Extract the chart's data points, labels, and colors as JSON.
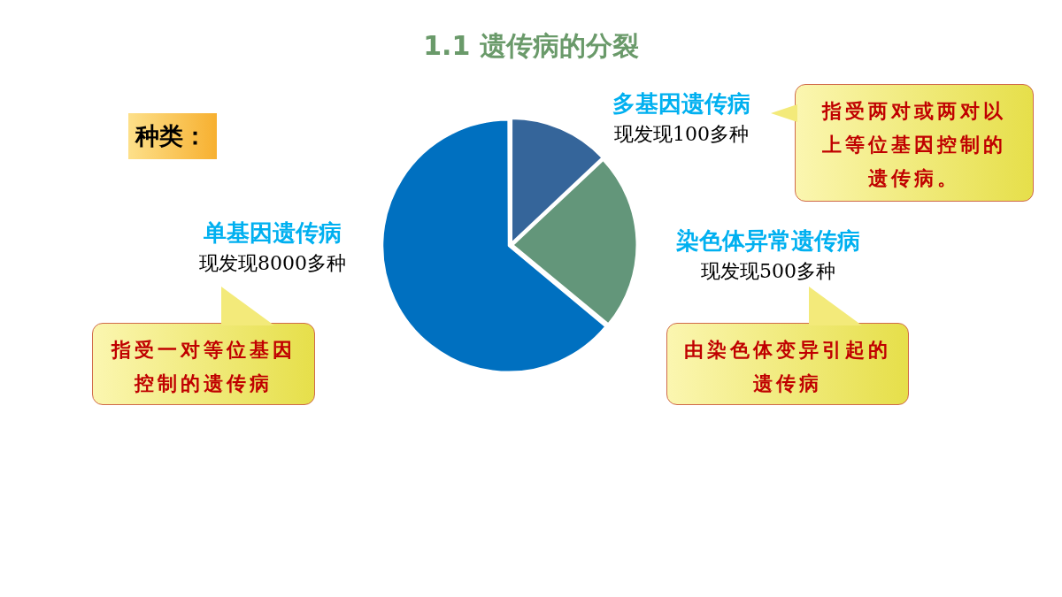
{
  "chart_data": {
    "type": "pie",
    "title": "1.1 遗传病的分裂",
    "categories": [
      "多基因遗传病",
      "染色体异常遗传病",
      "单基因遗传病"
    ],
    "values": [
      13,
      23,
      64
    ],
    "colors": [
      "#35659a",
      "#63967a",
      "#0070c0"
    ],
    "legend": false,
    "annotations": [
      "种类：",
      "现发现100多种",
      "现发现500多种",
      "现发现8000多种",
      "指受两对或两对以上等位基因控制的遗传病。",
      "由染色体变异引起的遗传病",
      "指受一对等位基因控制的遗传病"
    ]
  }
}
